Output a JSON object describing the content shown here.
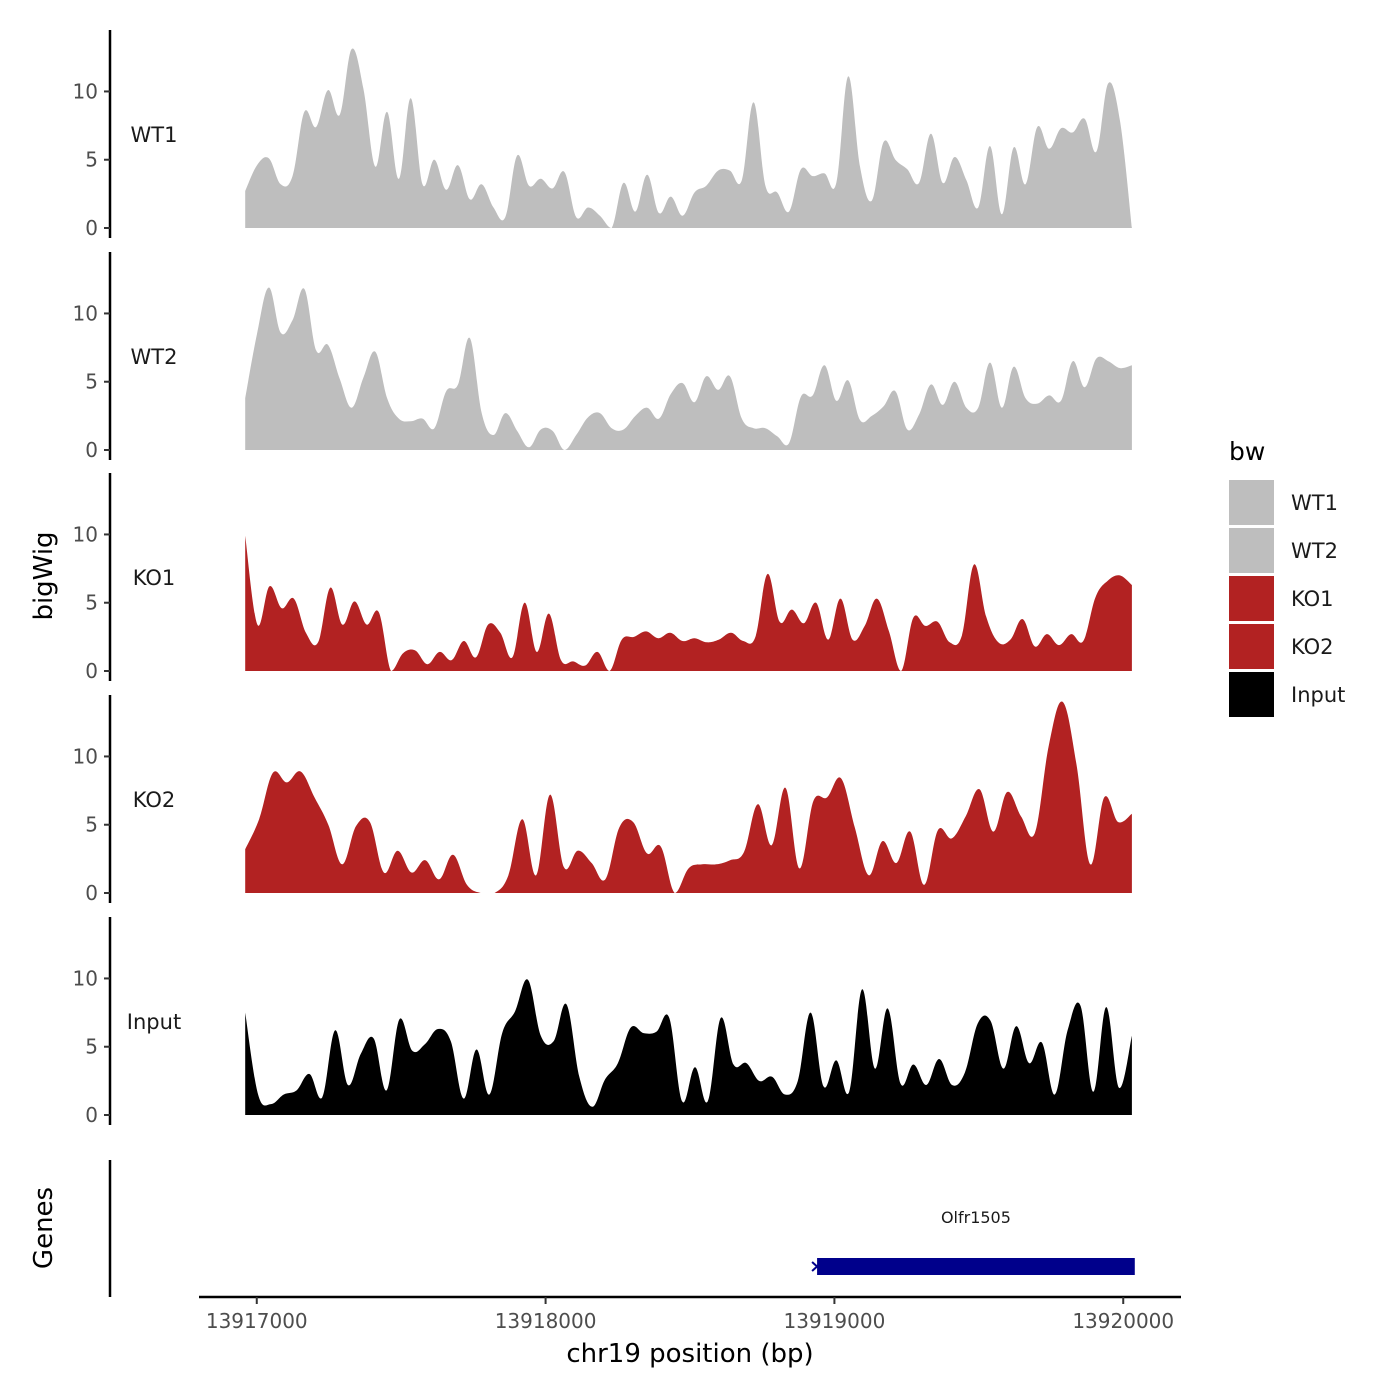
{
  "chart_data": {
    "type": "area",
    "title": "",
    "xlabel": "chr19 position (bp)",
    "ylabel": "bigWig",
    "genes_label": "Genes",
    "xlim": [
      13916800,
      13920200
    ],
    "x_ticks": [
      13917000,
      13918000,
      13919000,
      13920000
    ],
    "x_tick_labels": [
      "13917000",
      "13918000",
      "13919000",
      "13920000"
    ],
    "ylim": [
      0,
      14.5
    ],
    "y_ticks": [
      0,
      5,
      10
    ],
    "y_tick_labels": [
      "0",
      "5",
      "10"
    ],
    "legend": {
      "title": "bw",
      "position": "right",
      "entries": [
        {
          "label": "WT1",
          "color": "#bebebe"
        },
        {
          "label": "WT2",
          "color": "#bebebe"
        },
        {
          "label": "KO1",
          "color": "#b22222"
        },
        {
          "label": "KO2",
          "color": "#b22222"
        },
        {
          "label": "Input",
          "color": "#000000"
        }
      ]
    },
    "series": [
      {
        "name": "WT1",
        "color": "#bebebe",
        "x_start": 13916960,
        "x_end": 13920030,
        "values": [
          2.7,
          4.6,
          5.1,
          3.2,
          3.8,
          8.5,
          7.4,
          10.1,
          8.3,
          13.1,
          10.2,
          4.5,
          8.5,
          3.6,
          9.5,
          3.2,
          5.0,
          2.8,
          4.6,
          2.1,
          3.2,
          1.5,
          0.8,
          5.3,
          3.1,
          3.6,
          2.9,
          4.1,
          0.8,
          1.5,
          0.9,
          0.0,
          3.3,
          1.2,
          3.9,
          1.1,
          2.3,
          0.9,
          2.6,
          3.1,
          4.2,
          4.2,
          3.5,
          9.2,
          3.1,
          2.6,
          1.2,
          4.3,
          3.8,
          4.0,
          3.3,
          11.1,
          4.5,
          2.0,
          6.3,
          5.0,
          4.3,
          3.3,
          6.9,
          3.3,
          5.2,
          3.5,
          1.5,
          6.0,
          1.0,
          5.9,
          3.2,
          7.4,
          5.8,
          7.3,
          7.0,
          8.0,
          5.6,
          10.6,
          7.8,
          0.0
        ],
        "sharp_points": [
          0,
          31,
          75
        ]
      },
      {
        "name": "WT2",
        "color": "#bebebe",
        "x_start": 13916960,
        "x_end": 13920030,
        "values": [
          3.8,
          8.5,
          11.9,
          8.6,
          9.5,
          11.8,
          7.3,
          7.7,
          5.2,
          3.1,
          5.3,
          7.2,
          3.8,
          2.3,
          2.1,
          2.3,
          1.6,
          4.3,
          4.8,
          8.2,
          2.7,
          1.1,
          2.7,
          1.4,
          0.2,
          1.5,
          1.4,
          0.0,
          1.1,
          2.4,
          2.7,
          1.6,
          1.5,
          2.5,
          3.1,
          2.3,
          4.1,
          4.9,
          3.5,
          5.4,
          4.4,
          5.4,
          2.3,
          1.6,
          1.6,
          1.0,
          0.5,
          3.9,
          4.0,
          6.2,
          3.6,
          5.1,
          2.2,
          2.5,
          3.2,
          4.3,
          1.5,
          2.6,
          4.8,
          3.3,
          5.0,
          3.1,
          3.1,
          6.4,
          3.1,
          6.1,
          3.8,
          3.4,
          4.0,
          3.6,
          6.5,
          4.6,
          6.7,
          6.5,
          6.0,
          6.2
        ],
        "sharp_points": [
          27
        ]
      },
      {
        "name": "KO1",
        "color": "#b22222",
        "x_start": 13916960,
        "x_end": 13920030,
        "values": [
          9.9,
          3.4,
          6.2,
          4.6,
          5.3,
          2.8,
          2.1,
          6.1,
          3.4,
          5.1,
          3.4,
          4.3,
          0.0,
          1.3,
          1.5,
          0.5,
          1.4,
          0.8,
          2.2,
          1.0,
          3.4,
          2.8,
          1.0,
          5.0,
          1.4,
          4.2,
          0.8,
          0.7,
          0.4,
          1.4,
          0.0,
          2.3,
          2.5,
          2.9,
          2.4,
          2.8,
          2.2,
          2.4,
          2.1,
          2.3,
          2.8,
          2.2,
          2.5,
          7.1,
          3.6,
          4.5,
          3.5,
          5.0,
          2.3,
          5.3,
          2.3,
          3.3,
          5.3,
          2.9,
          0.0,
          3.9,
          3.3,
          3.6,
          2.1,
          2.6,
          7.8,
          4.0,
          2.1,
          2.3,
          3.8,
          1.8,
          2.7,
          1.9,
          2.7,
          2.2,
          5.4,
          6.6,
          7.0,
          6.3
        ],
        "sharp_points": [
          12,
          30,
          54
        ]
      },
      {
        "name": "KO2",
        "color": "#b22222",
        "x_start": 13916960,
        "x_end": 13920030,
        "values": [
          3.2,
          5.4,
          8.8,
          8.1,
          8.9,
          7.0,
          5.0,
          2.1,
          4.9,
          5.2,
          1.5,
          3.1,
          1.5,
          2.4,
          1.0,
          2.8,
          0.6,
          0.0,
          0.0,
          1.3,
          5.4,
          1.3,
          7.2,
          1.9,
          3.1,
          2.2,
          1.0,
          4.8,
          5.2,
          2.9,
          3.4,
          0.0,
          1.8,
          2.1,
          2.1,
          2.4,
          3.0,
          6.5,
          3.5,
          7.7,
          1.8,
          6.7,
          7.0,
          8.4,
          4.8,
          1.3,
          3.8,
          2.2,
          4.5,
          0.6,
          4.6,
          4.0,
          5.6,
          7.6,
          4.5,
          7.4,
          5.6,
          4.4,
          10.8,
          14.0,
          9.4,
          2.1,
          7.0,
          5.2,
          5.8
        ],
        "sharp_points": [
          17,
          18,
          31
        ]
      },
      {
        "name": "Input",
        "color": "#000000",
        "x_start": 13916960,
        "x_end": 13920030,
        "values": [
          7.5,
          1.5,
          0.8,
          1.5,
          1.8,
          3.0,
          1.3,
          6.2,
          2.2,
          4.5,
          5.6,
          1.8,
          7.0,
          4.7,
          5.2,
          6.3,
          5.4,
          1.2,
          4.8,
          1.5,
          6.0,
          7.6,
          9.9,
          5.8,
          5.4,
          8.1,
          2.8,
          0.6,
          2.6,
          3.8,
          6.4,
          6.0,
          6.1,
          7.1,
          1.0,
          3.5,
          1.0,
          7.1,
          3.7,
          3.8,
          2.5,
          2.8,
          1.5,
          2.5,
          7.5,
          2.1,
          4.0,
          1.7,
          9.2,
          3.4,
          7.8,
          2.3,
          3.7,
          2.2,
          4.1,
          2.2,
          3.1,
          6.7,
          6.9,
          3.4,
          6.5,
          3.8,
          5.3,
          1.5,
          6.2,
          8.0,
          1.7,
          7.9,
          2.0,
          5.8
        ],
        "sharp_points": []
      }
    ],
    "genes": [
      {
        "name": "Olfr1505",
        "start": 13918940,
        "end": 13920040,
        "strand": "-",
        "color": "#00008b"
      }
    ]
  }
}
